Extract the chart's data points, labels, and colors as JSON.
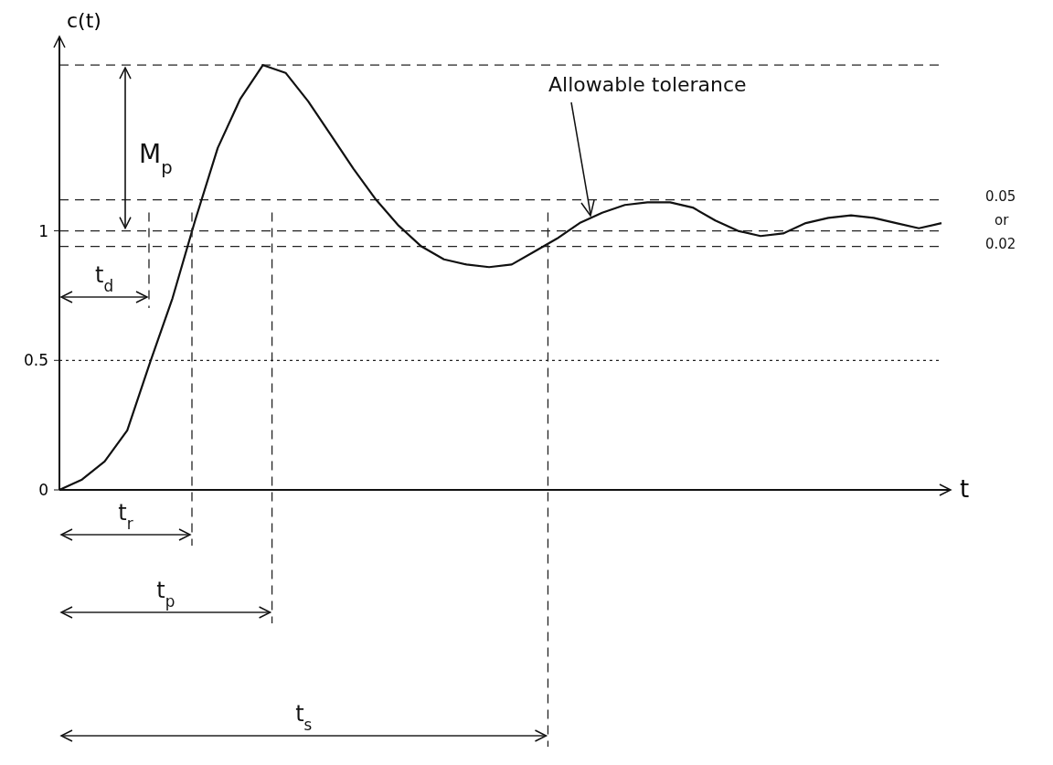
{
  "chart_data": {
    "type": "line",
    "xlabel": "t",
    "ylabel": "c(t)",
    "categories": [
      null,
      null,
      null,
      null,
      null,
      null,
      null,
      null,
      null,
      null,
      null,
      null,
      null,
      null,
      null,
      null,
      null,
      null,
      null,
      null,
      null,
      null,
      null,
      null,
      null,
      null,
      null,
      null,
      null,
      null,
      null,
      null,
      null,
      null,
      null,
      null,
      null,
      null,
      null,
      null
    ],
    "series": [
      {
        "color": "#111111",
        "values": [
          0,
          0.04,
          0.11,
          0.23,
          0.49,
          0.74,
          1.04,
          1.32,
          1.51,
          1.64,
          1.61,
          1.5,
          1.37,
          1.24,
          1.12,
          1.02,
          0.94,
          0.89,
          0.87,
          0.86,
          0.87,
          0.92,
          0.97,
          1.03,
          1.07,
          1.1,
          1.11,
          1.11,
          1.09,
          1.04,
          1.0,
          0.98,
          0.99,
          1.03,
          1.05,
          1.06,
          1.05,
          1.03,
          1.01,
          1.03
        ]
      }
    ],
    "ylim": [
      0,
      1.75
    ],
    "yticks": [
      0,
      0.5,
      1
    ],
    "tick_labels": "y",
    "marker": "none",
    "line_style": "solid",
    "grid": false,
    "ref_lines": [
      {
        "axis": "y",
        "value": 1,
        "line_style": "dashed"
      },
      {
        "axis": "y",
        "value": 0.5,
        "line_style": "dotted"
      },
      {
        "axis": "y",
        "value": 1.64,
        "line_style": "dashed"
      },
      {
        "axis": "y",
        "value": 1.12,
        "line_style": "dashed"
      },
      {
        "axis": "y",
        "value": 0.94,
        "line_style": "dashed"
      }
    ],
    "annotations": [
      "M$_{p}$",
      "Allowable tolerance",
      "0.05",
      "or",
      "0.02",
      "t$_{d}$",
      "t$_{r}$",
      "t$_{p}$",
      "t$_{s}$"
    ]
  }
}
